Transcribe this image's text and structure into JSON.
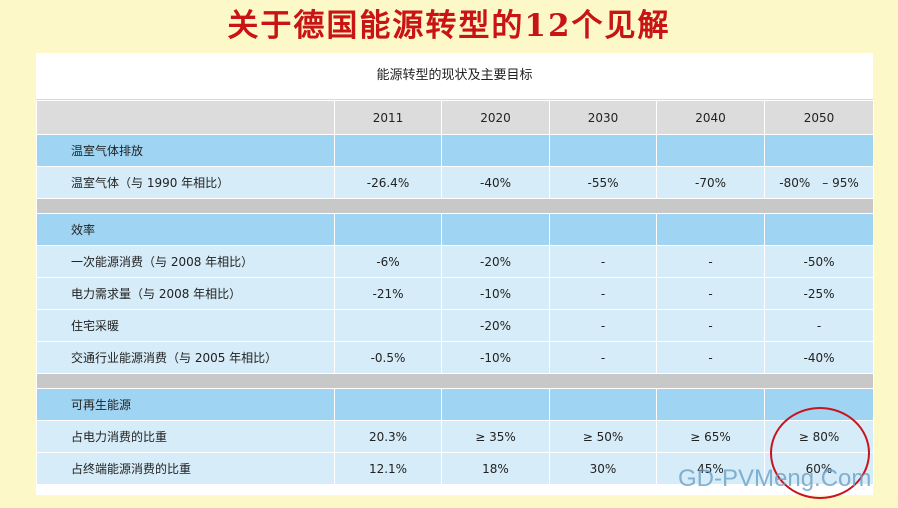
{
  "title": "关于德国能源转型的12个见解",
  "table": {
    "caption": "能源转型的现状及主要目标",
    "years": [
      "2011",
      "2020",
      "2030",
      "2040",
      "2050"
    ],
    "rows": [
      {
        "kind": "section",
        "label": "温室气体排放",
        "values": [
          "",
          "",
          "",
          "",
          ""
        ]
      },
      {
        "kind": "data",
        "label": "温室气体（与 1990 年相比）",
        "values": [
          "-26.4%",
          "-40%",
          "-55%",
          "-70%",
          "-80%　– 95%"
        ]
      },
      {
        "kind": "gap"
      },
      {
        "kind": "section",
        "label": "效率",
        "values": [
          "",
          "",
          "",
          "",
          ""
        ]
      },
      {
        "kind": "data",
        "label": "一次能源消费（与 2008 年相比）",
        "values": [
          "-6%",
          "-20%",
          "-",
          "-",
          "-50%"
        ]
      },
      {
        "kind": "data",
        "label": "电力需求量（与 2008 年相比）",
        "values": [
          "-21%",
          "-10%",
          "-",
          "-",
          "-25%"
        ]
      },
      {
        "kind": "data",
        "label": "住宅采暖",
        "values": [
          "",
          "-20%",
          "-",
          "-",
          "-"
        ]
      },
      {
        "kind": "data",
        "label": "交通行业能源消费（与 2005 年相比）",
        "values": [
          "-0.5%",
          "-10%",
          "-",
          "-",
          "-40%"
        ]
      },
      {
        "kind": "gap"
      },
      {
        "kind": "section",
        "label": "可再生能源",
        "values": [
          "",
          "",
          "",
          "",
          ""
        ]
      },
      {
        "kind": "data",
        "label": "占电力消费的比重",
        "values": [
          "20.3%",
          "≥ 35%",
          "≥ 50%",
          "≥ 65%",
          "≥ 80%"
        ]
      },
      {
        "kind": "data",
        "label": "占终端能源消费的比重",
        "values": [
          "12.1%",
          "18%",
          "30%",
          "45%",
          "60%"
        ]
      }
    ]
  },
  "watermark": "GD-PVMeng.Com",
  "colors": {
    "background": "#fdf8c8",
    "title": "#c81414",
    "section_row": "#9fd5f3",
    "data_row": "#d6ecf8",
    "header_row": "#dcdcdc",
    "highlight": "#c8141e"
  }
}
